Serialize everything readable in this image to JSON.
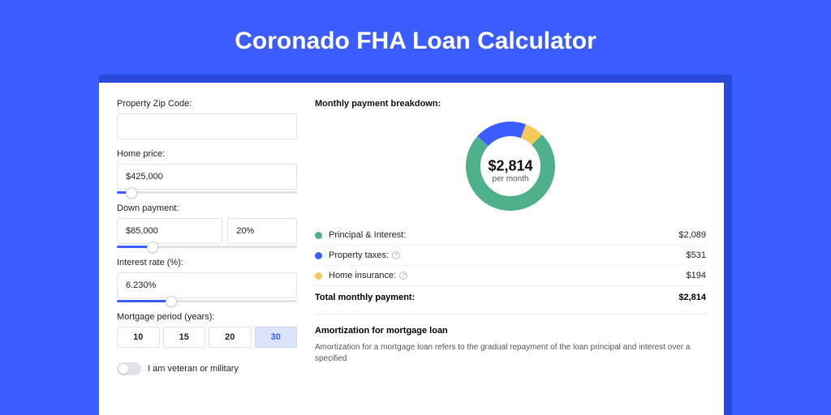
{
  "page": {
    "title": "Coronado FHA Loan Calculator"
  },
  "colors": {
    "page_bg": "#3b5dff",
    "shadow_bg": "#2a48d9",
    "card_bg": "#ffffff",
    "accent": "#3b5dff",
    "border": "#e0e3ea",
    "text": "#222222"
  },
  "form": {
    "zip": {
      "label": "Property Zip Code:",
      "value": ""
    },
    "home_price": {
      "label": "Home price:",
      "value": "$425,000",
      "slider_pct": 8
    },
    "down_payment": {
      "label": "Down payment:",
      "amount": "$85,000",
      "percent": "20%",
      "slider_pct": 20
    },
    "interest_rate": {
      "label": "Interest rate (%):",
      "value": "6.230%",
      "slider_pct": 30
    },
    "mortgage_period": {
      "label": "Mortgage period (years):",
      "options": [
        "10",
        "15",
        "20",
        "30"
      ],
      "selected_index": 3
    },
    "veteran": {
      "label": "I am veteran or military",
      "checked": false
    }
  },
  "breakdown": {
    "title": "Monthly payment breakdown:",
    "donut": {
      "center_amount": "$2,814",
      "center_sub": "per month",
      "series": [
        {
          "key": "principal_interest",
          "value": 2089,
          "color": "#4fb08c"
        },
        {
          "key": "property_taxes",
          "value": 531,
          "color": "#3b5dff"
        },
        {
          "key": "home_insurance",
          "value": 194,
          "color": "#f3c959"
        }
      ],
      "size": 110,
      "stroke": 18,
      "start_angle_deg": -45
    },
    "items": [
      {
        "label": "Principal & Interest:",
        "value": "$2,089",
        "color": "#4fb08c",
        "info": false
      },
      {
        "label": "Property taxes:",
        "value": "$531",
        "color": "#3b5dff",
        "info": true
      },
      {
        "label": "Home insurance:",
        "value": "$194",
        "color": "#f3c959",
        "info": true
      }
    ],
    "total": {
      "label": "Total monthly payment:",
      "value": "$2,814"
    }
  },
  "amortization": {
    "title": "Amortization for mortgage loan",
    "text": "Amortization for a mortgage loan refers to the gradual repayment of the loan principal and interest over a specified"
  }
}
